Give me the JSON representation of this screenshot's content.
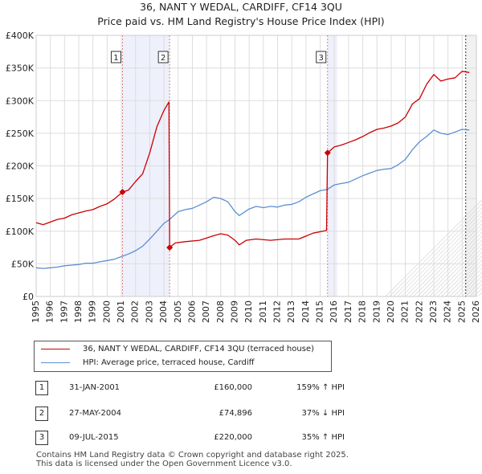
{
  "chart_data": {
    "type": "line",
    "title": "36, NANT Y WEDAL, CARDIFF, CF14 3QU",
    "subtitle": "Price paid vs. HM Land Registry's House Price Index (HPI)",
    "xlim": [
      1995,
      2026
    ],
    "ylim": [
      0,
      400000
    ],
    "x_ticks": [
      "1995",
      "1996",
      "1997",
      "1998",
      "1999",
      "2000",
      "2001",
      "2002",
      "2003",
      "2004",
      "2005",
      "2006",
      "2007",
      "2008",
      "2009",
      "2010",
      "2011",
      "2012",
      "2013",
      "2014",
      "2015",
      "2016",
      "2017",
      "2018",
      "2019",
      "2020",
      "2021",
      "2022",
      "2023",
      "2024",
      "2025",
      "2026"
    ],
    "y_ticks": [
      {
        "value": 0,
        "label": "£0"
      },
      {
        "value": 50000,
        "label": "£50K"
      },
      {
        "value": 100000,
        "label": "£100K"
      },
      {
        "value": 150000,
        "label": "£150K"
      },
      {
        "value": 200000,
        "label": "£200K"
      },
      {
        "value": 250000,
        "label": "£250K"
      },
      {
        "value": 300000,
        "label": "£300K"
      },
      {
        "value": 350000,
        "label": "£350K"
      },
      {
        "value": 400000,
        "label": "£400K"
      }
    ],
    "grid": true,
    "forecast_start": 2025.25,
    "series": [
      {
        "name": "36, NANT Y WEDAL, CARDIFF, CF14 3QU (terraced house)",
        "color": "#cc0000",
        "points": [
          [
            1995.0,
            113000
          ],
          [
            1995.5,
            110000
          ],
          [
            1996.0,
            114000
          ],
          [
            1996.5,
            118000
          ],
          [
            1997.0,
            120000
          ],
          [
            1997.5,
            125000
          ],
          [
            1998.0,
            128000
          ],
          [
            1998.5,
            131000
          ],
          [
            1999.0,
            133000
          ],
          [
            1999.5,
            138000
          ],
          [
            2000.0,
            142000
          ],
          [
            2000.5,
            149000
          ],
          [
            2001.08,
            160000
          ],
          [
            2001.5,
            163000
          ],
          [
            2002.0,
            176000
          ],
          [
            2002.5,
            188000
          ],
          [
            2003.0,
            220000
          ],
          [
            2003.5,
            260000
          ],
          [
            2004.0,
            285000
          ],
          [
            2004.35,
            298000
          ],
          [
            2004.4,
            74896
          ],
          [
            2004.8,
            82000
          ],
          [
            2005.5,
            84000
          ],
          [
            2006.5,
            86000
          ],
          [
            2007.5,
            93000
          ],
          [
            2008.0,
            96000
          ],
          [
            2008.5,
            94000
          ],
          [
            2009.0,
            86000
          ],
          [
            2009.3,
            79000
          ],
          [
            2009.8,
            86000
          ],
          [
            2010.5,
            88000
          ],
          [
            2011.5,
            86000
          ],
          [
            2012.5,
            88000
          ],
          [
            2013.5,
            88000
          ],
          [
            2014.5,
            97000
          ],
          [
            2015.45,
            101000
          ],
          [
            2015.52,
            220000
          ],
          [
            2016.0,
            229000
          ],
          [
            2016.5,
            232000
          ],
          [
            2017.0,
            236000
          ],
          [
            2017.5,
            240000
          ],
          [
            2018.0,
            245000
          ],
          [
            2018.5,
            251000
          ],
          [
            2019.0,
            256000
          ],
          [
            2019.5,
            258000
          ],
          [
            2020.0,
            261000
          ],
          [
            2020.5,
            266000
          ],
          [
            2021.0,
            275000
          ],
          [
            2021.5,
            295000
          ],
          [
            2022.0,
            303000
          ],
          [
            2022.5,
            325000
          ],
          [
            2023.0,
            340000
          ],
          [
            2023.5,
            330000
          ],
          [
            2024.0,
            333000
          ],
          [
            2024.5,
            335000
          ],
          [
            2025.0,
            345000
          ],
          [
            2025.5,
            343000
          ]
        ]
      },
      {
        "name": "HPI: Average price, terraced house, Cardiff",
        "color": "#5b8fd1",
        "points": [
          [
            1995.0,
            44000
          ],
          [
            1995.5,
            43000
          ],
          [
            1996.0,
            44000
          ],
          [
            1996.5,
            45000
          ],
          [
            1997.0,
            47000
          ],
          [
            1997.5,
            48000
          ],
          [
            1998.0,
            49000
          ],
          [
            1998.5,
            51000
          ],
          [
            1999.0,
            51000
          ],
          [
            1999.5,
            53000
          ],
          [
            2000.0,
            55000
          ],
          [
            2000.5,
            57000
          ],
          [
            2001.0,
            61000
          ],
          [
            2001.5,
            65000
          ],
          [
            2002.0,
            70000
          ],
          [
            2002.5,
            77000
          ],
          [
            2003.0,
            88000
          ],
          [
            2003.5,
            100000
          ],
          [
            2004.0,
            112000
          ],
          [
            2004.4,
            118000
          ],
          [
            2005.0,
            130000
          ],
          [
            2005.5,
            133000
          ],
          [
            2006.0,
            135000
          ],
          [
            2006.5,
            140000
          ],
          [
            2007.0,
            145000
          ],
          [
            2007.5,
            152000
          ],
          [
            2008.0,
            150000
          ],
          [
            2008.5,
            145000
          ],
          [
            2009.0,
            130000
          ],
          [
            2009.3,
            124000
          ],
          [
            2010.0,
            134000
          ],
          [
            2010.5,
            138000
          ],
          [
            2011.0,
            136000
          ],
          [
            2011.5,
            138000
          ],
          [
            2012.0,
            137000
          ],
          [
            2012.5,
            140000
          ],
          [
            2013.0,
            141000
          ],
          [
            2013.5,
            145000
          ],
          [
            2014.0,
            152000
          ],
          [
            2014.5,
            157000
          ],
          [
            2015.0,
            162000
          ],
          [
            2015.5,
            164000
          ],
          [
            2016.0,
            171000
          ],
          [
            2016.5,
            173000
          ],
          [
            2017.0,
            175000
          ],
          [
            2017.5,
            180000
          ],
          [
            2018.0,
            185000
          ],
          [
            2018.5,
            189000
          ],
          [
            2019.0,
            193000
          ],
          [
            2019.5,
            195000
          ],
          [
            2020.0,
            196000
          ],
          [
            2020.5,
            202000
          ],
          [
            2021.0,
            210000
          ],
          [
            2021.5,
            225000
          ],
          [
            2022.0,
            237000
          ],
          [
            2022.5,
            245000
          ],
          [
            2023.0,
            255000
          ],
          [
            2023.5,
            250000
          ],
          [
            2024.0,
            248000
          ],
          [
            2024.5,
            252000
          ],
          [
            2025.0,
            256000
          ],
          [
            2025.5,
            255000
          ]
        ]
      }
    ],
    "transactions": [
      {
        "num": "1",
        "date": "31-JAN-2001",
        "price": "£160,000",
        "hpi": "159% ↑ HPI",
        "x": 2001.08,
        "y": 160000
      },
      {
        "num": "2",
        "date": "27-MAY-2004",
        "price": "£74,896",
        "hpi": "37% ↓ HPI",
        "x": 2004.4,
        "y": 74896
      },
      {
        "num": "3",
        "date": "09-JUL-2015",
        "price": "£220,000",
        "hpi": "35% ↑ HPI",
        "x": 2015.52,
        "y": 220000
      }
    ],
    "highlight_bands": [
      [
        2001.08,
        2004.4
      ],
      [
        2015.52,
        2016.2
      ]
    ],
    "legend": {
      "placement": "bottom"
    }
  },
  "legend": {
    "property_label": "36, NANT Y WEDAL, CARDIFF, CF14 3QU (terraced house)",
    "hpi_label": "HPI: Average price, terraced house, Cardiff"
  },
  "footer": {
    "line1": "Contains HM Land Registry data © Crown copyright and database right 2025.",
    "line2": "This data is licensed under the Open Government Licence v3.0."
  }
}
